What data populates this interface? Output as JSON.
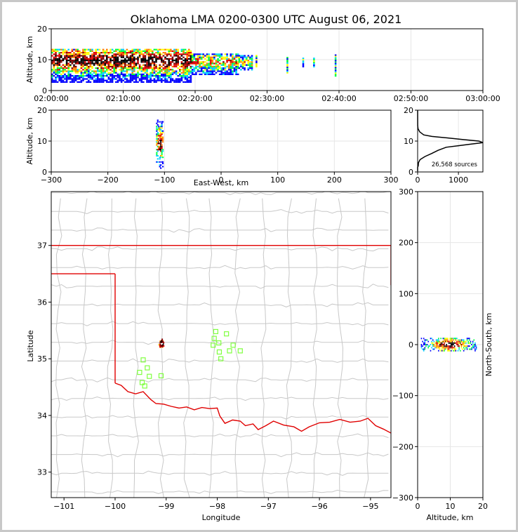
{
  "chart_data": {
    "type": "scatter",
    "title": "Oklahoma LMA 0200-0300 UTC August 06, 2021",
    "colors": {
      "density": [
        "#0000ff",
        "#00d0ff",
        "#00ff40",
        "#ffff00",
        "#ff8000",
        "#e00000",
        "#800000",
        "#000000",
        "#ffffff"
      ],
      "stations": "#80ff40",
      "state_border": "#e00000",
      "county": "#c8c8c8"
    },
    "time_height": {
      "ylabel": "Altitude, km",
      "ylim": [
        0,
        20
      ],
      "yticks": [
        "0",
        "10",
        "20"
      ],
      "xlim_minutes": [
        0,
        60
      ],
      "xticks": [
        "02:00:00",
        "02:10:00",
        "02:20:00",
        "02:30:00",
        "02:40:00",
        "02:50:00",
        "03:00:00"
      ],
      "clusters": [
        {
          "t0": 0,
          "t1": 19.5,
          "zmin": 2.5,
          "zmax": 13.5,
          "center": 9.5,
          "peak": 1.0
        },
        {
          "t0": 19.5,
          "t1": 26,
          "zmin": 5,
          "zmax": 12,
          "center": 9,
          "peak": 0.6
        },
        {
          "t0": 26,
          "t1": 28,
          "zmin": 6.5,
          "zmax": 11.5,
          "center": 9,
          "peak": 0.45
        }
      ],
      "isolated_columns": [
        {
          "t": 28.5,
          "zmin": 7.5,
          "zmax": 11.5
        },
        {
          "t": 32.8,
          "zmin": 5.5,
          "zmax": 10.5
        },
        {
          "t": 35,
          "zmin": 7.5,
          "zmax": 10.5
        },
        {
          "t": 36.5,
          "zmin": 7.5,
          "zmax": 10.5
        },
        {
          "t": 39.5,
          "zmin": 4.5,
          "zmax": 11.5
        }
      ]
    },
    "ew_height": {
      "ylabel": "Altitude, km",
      "xlabel": "East-West, km",
      "xlim": [
        -300,
        300
      ],
      "ylim": [
        0,
        20
      ],
      "xticks": [
        "−300",
        "−200",
        "−100",
        "0",
        "100",
        "200",
        "300"
      ],
      "yticks": [
        "0",
        "10",
        "20"
      ],
      "source_center_x": -109,
      "source_halfwidth_x": 6,
      "source_z_range": [
        1,
        17
      ]
    },
    "histogram": {
      "xlim": [
        0,
        1600
      ],
      "ylim": [
        0,
        20
      ],
      "xticks": [
        "0",
        "1000"
      ],
      "yticks": [
        "0",
        "10",
        "20"
      ],
      "label": "26,568 sources",
      "counts_by_altitude": [
        [
          0.3,
          0
        ],
        [
          1.5,
          0
        ],
        [
          2,
          15
        ],
        [
          3,
          20
        ],
        [
          4,
          60
        ],
        [
          5,
          180
        ],
        [
          6,
          350
        ],
        [
          7,
          500
        ],
        [
          8,
          700
        ],
        [
          8.5,
          1000
        ],
        [
          9,
          1300
        ],
        [
          9.5,
          1600
        ],
        [
          10,
          1500
        ],
        [
          10.5,
          1100
        ],
        [
          11,
          750
        ],
        [
          11.5,
          350
        ],
        [
          12,
          150
        ],
        [
          13,
          50
        ],
        [
          14,
          10
        ],
        [
          15,
          2
        ],
        [
          20,
          0
        ]
      ]
    },
    "map": {
      "xlabel": "Longitude",
      "ylabel": "Latitude",
      "xlim": [
        -101.25,
        -94.6
      ],
      "ylim": [
        32.55,
        37.95
      ],
      "xticks": [
        "−101",
        "−100",
        "−99",
        "−98",
        "−97",
        "−96",
        "−95"
      ],
      "yticks": [
        "33",
        "34",
        "35",
        "36",
        "37"
      ],
      "storm_center": [
        -99.1,
        35.28
      ],
      "stations": [
        [
          -98.03,
          35.48
        ],
        [
          -97.82,
          35.44
        ],
        [
          -98.06,
          35.36
        ],
        [
          -97.97,
          35.28
        ],
        [
          -98.08,
          35.24
        ],
        [
          -97.69,
          35.24
        ],
        [
          -97.76,
          35.14
        ],
        [
          -97.55,
          35.14
        ],
        [
          -97.96,
          35.12
        ],
        [
          -97.93,
          35.0
        ],
        [
          -99.45,
          34.98
        ],
        [
          -99.37,
          34.84
        ],
        [
          -99.52,
          34.76
        ],
        [
          -99.33,
          34.69
        ],
        [
          -99.1,
          34.7
        ],
        [
          -99.47,
          34.58
        ],
        [
          -99.42,
          34.52
        ]
      ],
      "red_river": [
        [
          -100.0,
          34.57
        ],
        [
          -99.88,
          34.53
        ],
        [
          -99.75,
          34.42
        ],
        [
          -99.6,
          34.38
        ],
        [
          -99.45,
          34.42
        ],
        [
          -99.3,
          34.28
        ],
        [
          -99.2,
          34.21
        ],
        [
          -99.05,
          34.2
        ],
        [
          -98.9,
          34.16
        ],
        [
          -98.75,
          34.13
        ],
        [
          -98.6,
          34.15
        ],
        [
          -98.45,
          34.1
        ],
        [
          -98.3,
          34.14
        ],
        [
          -98.15,
          34.12
        ],
        [
          -98.0,
          34.13
        ],
        [
          -97.95,
          33.99
        ],
        [
          -97.85,
          33.86
        ],
        [
          -97.7,
          33.92
        ],
        [
          -97.55,
          33.9
        ],
        [
          -97.45,
          33.82
        ],
        [
          -97.3,
          33.85
        ],
        [
          -97.2,
          33.75
        ],
        [
          -97.05,
          33.82
        ],
        [
          -96.9,
          33.9
        ],
        [
          -96.7,
          33.83
        ],
        [
          -96.5,
          33.8
        ],
        [
          -96.35,
          33.72
        ],
        [
          -96.2,
          33.8
        ],
        [
          -96.0,
          33.87
        ],
        [
          -95.8,
          33.88
        ],
        [
          -95.6,
          33.93
        ],
        [
          -95.4,
          33.88
        ],
        [
          -95.2,
          33.9
        ],
        [
          -95.05,
          33.95
        ],
        [
          -94.9,
          33.82
        ],
        [
          -94.75,
          33.76
        ],
        [
          -94.6,
          33.69
        ]
      ],
      "state_lines": {
        "north_ks": [
          [
            -101.25,
            37.0
          ],
          [
            -94.6,
            37.0
          ]
        ],
        "north_texhoma": [
          [
            -101.25,
            36.5
          ],
          [
            -100.0,
            36.5
          ]
        ],
        "panhandle_east": [
          [
            -100.0,
            36.5
          ],
          [
            -100.0,
            34.57
          ]
        ],
        "ar_border": [
          [
            -94.6,
            37.0
          ],
          [
            -94.6,
            36.3
          ]
        ]
      }
    },
    "ns_altitude": {
      "xlabel": "Altitude, km",
      "ylabel": "North-South, km",
      "xlim": [
        0,
        20
      ],
      "ylim": [
        -300,
        300
      ],
      "xticks": [
        "0",
        "10",
        "20"
      ],
      "yticks": [
        "−300",
        "−200",
        "−100",
        "0",
        "100",
        "200",
        "300"
      ],
      "source_center_y": 0,
      "source_halfwidth_y": 12,
      "source_z_range": [
        1,
        18
      ]
    }
  }
}
